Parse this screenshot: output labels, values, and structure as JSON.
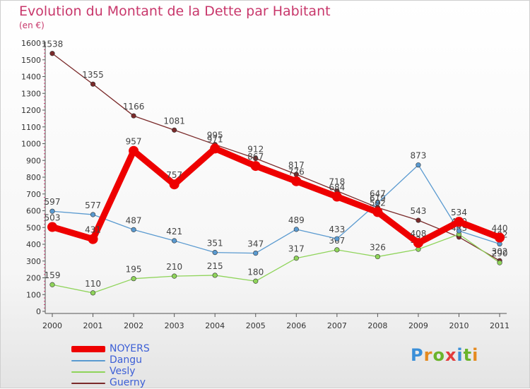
{
  "title": "Evolution du Montant de la Dette par Habitant",
  "unit": "(en €)",
  "logo": {
    "text": "Proxiti",
    "colors": [
      "#3a8fd8",
      "#e58a1f",
      "#6ab42b",
      "#e23c3c",
      "#3a8fd8",
      "#6ab42b",
      "#e58a1f"
    ]
  },
  "chart_data": {
    "type": "line",
    "categories": [
      "2000",
      "2001",
      "2002",
      "2003",
      "2004",
      "2005",
      "2006",
      "2007",
      "2008",
      "2009",
      "2010",
      "2011"
    ],
    "ylim": [
      0,
      1600
    ],
    "yticks": [
      0,
      100,
      200,
      300,
      400,
      500,
      600,
      700,
      800,
      900,
      1000,
      1100,
      1200,
      1300,
      1400,
      1500,
      1600
    ],
    "grid": false,
    "legend": "bottom-left",
    "series": [
      {
        "name": "Guerny",
        "color": "#7a2a2a",
        "values": [
          1538,
          1355,
          1166,
          1081,
          995,
          912,
          817,
          718,
          619,
          543,
          443,
          302
        ]
      },
      {
        "name": "Vesly",
        "color": "#8fd45a",
        "values": [
          159,
          110,
          195,
          210,
          215,
          180,
          317,
          367,
          326,
          370,
          460,
          290
        ]
      },
      {
        "name": "Dangu",
        "color": "#5a9ad0",
        "values": [
          597,
          577,
          487,
          421,
          351,
          347,
          489,
          433,
          647,
          873,
          480,
          402
        ]
      },
      {
        "name": "NOYERS",
        "color": "#ee0000",
        "values": [
          503,
          431,
          957,
          757,
          971,
          867,
          776,
          684,
          592,
          408,
          534,
          440
        ]
      }
    ],
    "legend_order": [
      "NOYERS",
      "Dangu",
      "Vesly",
      "Guerny"
    ]
  }
}
